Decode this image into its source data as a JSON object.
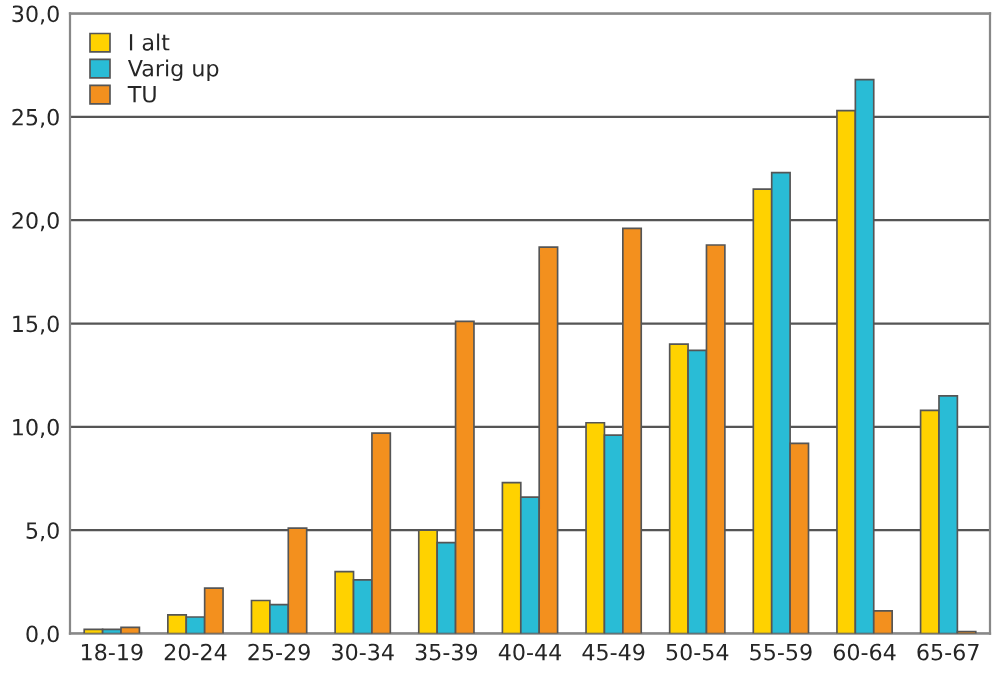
{
  "chart_data": {
    "type": "bar",
    "categories": [
      "18-19",
      "20-24",
      "25-29",
      "30-34",
      "35-39",
      "40-44",
      "45-49",
      "50-54",
      "55-59",
      "60-64",
      "65-67"
    ],
    "series": [
      {
        "name": "I alt",
        "color": "#ffd200",
        "values": [
          0.2,
          0.9,
          1.6,
          3.0,
          5.0,
          7.3,
          10.2,
          14.0,
          21.5,
          25.3,
          10.8
        ]
      },
      {
        "name": "Varig up",
        "color": "#29bcd6",
        "values": [
          0.2,
          0.8,
          1.4,
          2.6,
          4.4,
          6.6,
          9.6,
          13.7,
          22.3,
          26.8,
          11.5
        ]
      },
      {
        "name": "TU",
        "color": "#f3901e",
        "values": [
          0.3,
          2.2,
          5.1,
          9.7,
          15.1,
          18.7,
          19.6,
          18.8,
          9.2,
          1.1,
          0.1
        ]
      }
    ],
    "ylim": [
      0,
      30
    ],
    "yticks": [
      {
        "value": 0,
        "label": "0,0"
      },
      {
        "value": 5,
        "label": "5,0"
      },
      {
        "value": 10,
        "label": "10,0"
      },
      {
        "value": 15,
        "label": "15,0"
      },
      {
        "value": 20,
        "label": "20,0"
      },
      {
        "value": 25,
        "label": "25,0"
      },
      {
        "value": 30,
        "label": "30,0"
      }
    ],
    "grid": "y",
    "legend": "top left"
  }
}
